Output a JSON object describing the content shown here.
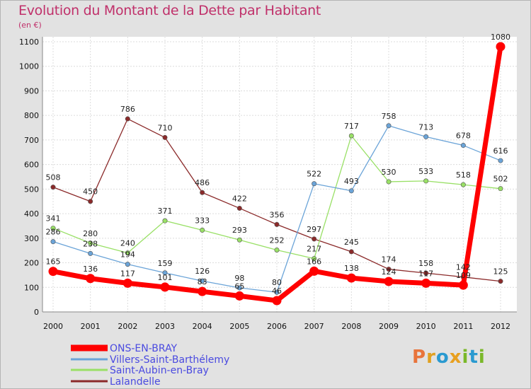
{
  "title": "Evolution du Montant de la Dette par Habitant",
  "unit_label": "(en €)",
  "logo_text": "Proxiti",
  "chart_data": {
    "type": "line",
    "title": "Evolution du Montant de la Dette par Habitant",
    "ylabel": "(en €)",
    "xlabel": "",
    "x": [
      "2000",
      "2001",
      "2002",
      "2003",
      "2004",
      "2005",
      "2006",
      "2007",
      "2008",
      "2009",
      "2010",
      "2011",
      "2012"
    ],
    "ylim": [
      0,
      1100
    ],
    "yticks": [
      0,
      100,
      200,
      300,
      400,
      500,
      600,
      700,
      800,
      900,
      1000,
      1100
    ],
    "grid": true,
    "legend_position": "bottom-left",
    "series": [
      {
        "name": "ONS-EN-BRAY",
        "color": "#ff0000",
        "values": [
          165,
          136,
          117,
          101,
          83,
          65,
          46,
          166,
          138,
          124,
          117,
          109,
          1080
        ]
      },
      {
        "name": "Villers-Saint-Barthélemy",
        "color": "#6ba4d8",
        "values": [
          286,
          238,
          194,
          159,
          126,
          98,
          80,
          522,
          493,
          758,
          713,
          678,
          616
        ]
      },
      {
        "name": "Saint-Aubin-en-Bray",
        "color": "#99e066",
        "values": [
          341,
          280,
          240,
          371,
          333,
          293,
          252,
          217,
          717,
          530,
          533,
          518,
          502
        ]
      },
      {
        "name": "Lalandelle",
        "color": "#8b2a2a",
        "values": [
          508,
          450,
          786,
          710,
          486,
          422,
          356,
          297,
          245,
          174,
          158,
          142,
          125
        ]
      }
    ]
  }
}
